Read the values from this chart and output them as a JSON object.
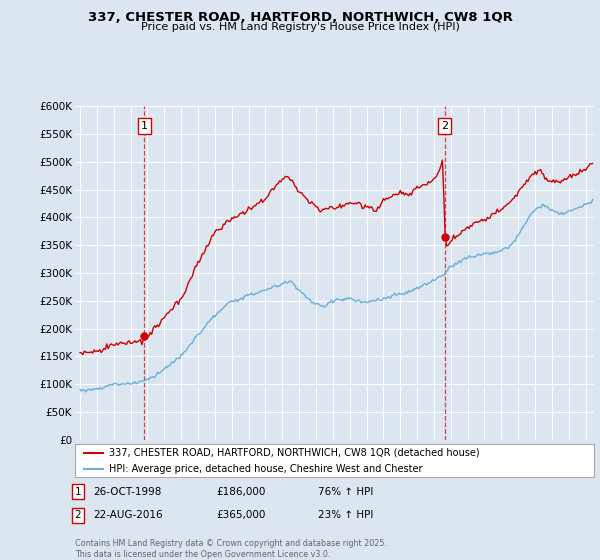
{
  "title_line1": "337, CHESTER ROAD, HARTFORD, NORTHWICH, CW8 1QR",
  "title_line2": "Price paid vs. HM Land Registry's House Price Index (HPI)",
  "background_color": "#dce6f1",
  "plot_bg_color": "#dce6f1",
  "grid_color": "#ffffff",
  "red_line_color": "#cc0000",
  "blue_line_color": "#6baed6",
  "ylim": [
    0,
    600000
  ],
  "yticks": [
    0,
    50000,
    100000,
    150000,
    200000,
    250000,
    300000,
    350000,
    400000,
    450000,
    500000,
    550000,
    600000
  ],
  "ytick_labels": [
    "£0",
    "£50K",
    "£100K",
    "£150K",
    "£200K",
    "£250K",
    "£300K",
    "£350K",
    "£400K",
    "£450K",
    "£500K",
    "£550K",
    "£600K"
  ],
  "annotation1": {
    "x_year": 1998.82,
    "label": "1",
    "date": "26-OCT-1998",
    "price": "£186,000",
    "pct": "76% ↑ HPI"
  },
  "annotation2": {
    "x_year": 2016.64,
    "label": "2",
    "date": "22-AUG-2016",
    "price": "£365,000",
    "pct": "23% ↑ HPI"
  },
  "legend_line1": "337, CHESTER ROAD, HARTFORD, NORTHWICH, CW8 1QR (detached house)",
  "legend_line2": "HPI: Average price, detached house, Cheshire West and Chester",
  "footer": "Contains HM Land Registry data © Crown copyright and database right 2025.\nThis data is licensed under the Open Government Licence v3.0.",
  "xlim_left": 1994.7,
  "xlim_right": 2025.5
}
